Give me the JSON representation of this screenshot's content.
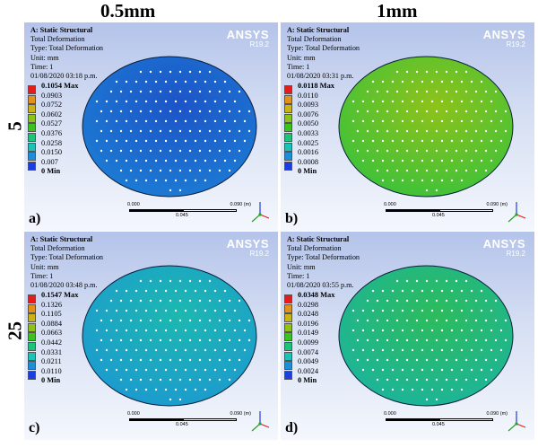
{
  "column_headers": [
    "0.5mm",
    "1mm"
  ],
  "row_headers": [
    "5",
    "25"
  ],
  "panels": [
    {
      "tag": "a)",
      "info": {
        "title": "A: Static Structural",
        "result": "Total Deformation",
        "type": "Type: Total Deformation",
        "unit": "Unit: mm",
        "time": "Time: 1",
        "date": "01/08/2020 03:18 p.m."
      },
      "brand": "ANSYS",
      "version": "R19.2",
      "legend": [
        "0.1054 Max",
        "0.0903",
        "0.0752",
        "0.0602",
        "0.0527",
        "0.0376",
        "0.0258",
        "0.0150",
        "0.007",
        "0 Min"
      ],
      "scale": {
        "start": "0.000",
        "end": "0.090 (m)",
        "mid": "0.045"
      }
    },
    {
      "tag": "b)",
      "info": {
        "title": "A: Static Structural",
        "result": "Total Deformation",
        "type": "Type: Total Deformation",
        "unit": "Unit: mm",
        "time": "Time: 1",
        "date": "01/08/2020 03:31 p.m."
      },
      "brand": "ANSYS",
      "version": "R19.2",
      "legend": [
        "0.0118 Max",
        "0.0110",
        "0.0093",
        "0.0076",
        "0.0050",
        "0.0033",
        "0.0025",
        "0.0016",
        "0.0008",
        "0 Min"
      ],
      "scale": {
        "start": "0.000",
        "end": "0.090 (m)",
        "mid": "0.045"
      }
    },
    {
      "tag": "c)",
      "info": {
        "title": "A: Static Structural",
        "result": "Total Deformation",
        "type": "Type: Total Deformation",
        "unit": "Unit: mm",
        "time": "Time: 1",
        "date": "01/08/2020 03:48 p.m."
      },
      "brand": "ANSYS",
      "version": "R19.2",
      "legend": [
        "0.1547 Max",
        "0.1326",
        "0.1105",
        "0.0884",
        "0.0663",
        "0.0442",
        "0.0331",
        "0.0211",
        "0.0110",
        "0 Min"
      ],
      "scale": {
        "start": "0.000",
        "end": "0.090 (m)",
        "mid": "0.045"
      }
    },
    {
      "tag": "d)",
      "info": {
        "title": "A: Static Structural",
        "result": "Total Deformation",
        "type": "Type: Total Deformation",
        "unit": "Unit: mm",
        "time": "Time: 1",
        "date": "01/08/2020 03:55 p.m."
      },
      "brand": "ANSYS",
      "version": "R19.2",
      "legend": [
        "0.0348 Max",
        "0.0298",
        "0.0248",
        "0.0196",
        "0.0149",
        "0.0099",
        "0.0074",
        "0.0049",
        "0.0024",
        "0 Min"
      ],
      "scale": {
        "start": "0.000",
        "end": "0.090 (m)",
        "mid": "0.045"
      }
    }
  ],
  "legend_colors": [
    "#e41c1c",
    "#e0921c",
    "#c8b41a",
    "#8ec21a",
    "#3cc21e",
    "#1fc27a",
    "#1cc2b4",
    "#1c8ed8",
    "#1c3ee0"
  ],
  "specimen_colors": {
    "a": [
      "#1c54c8",
      "#1c7cd4"
    ],
    "b": [
      "#8ec21a",
      "#3cc23a"
    ],
    "c": [
      "#1cb8b0",
      "#1c9ad0"
    ],
    "d": [
      "#2cbc5c",
      "#1cb49c"
    ]
  }
}
